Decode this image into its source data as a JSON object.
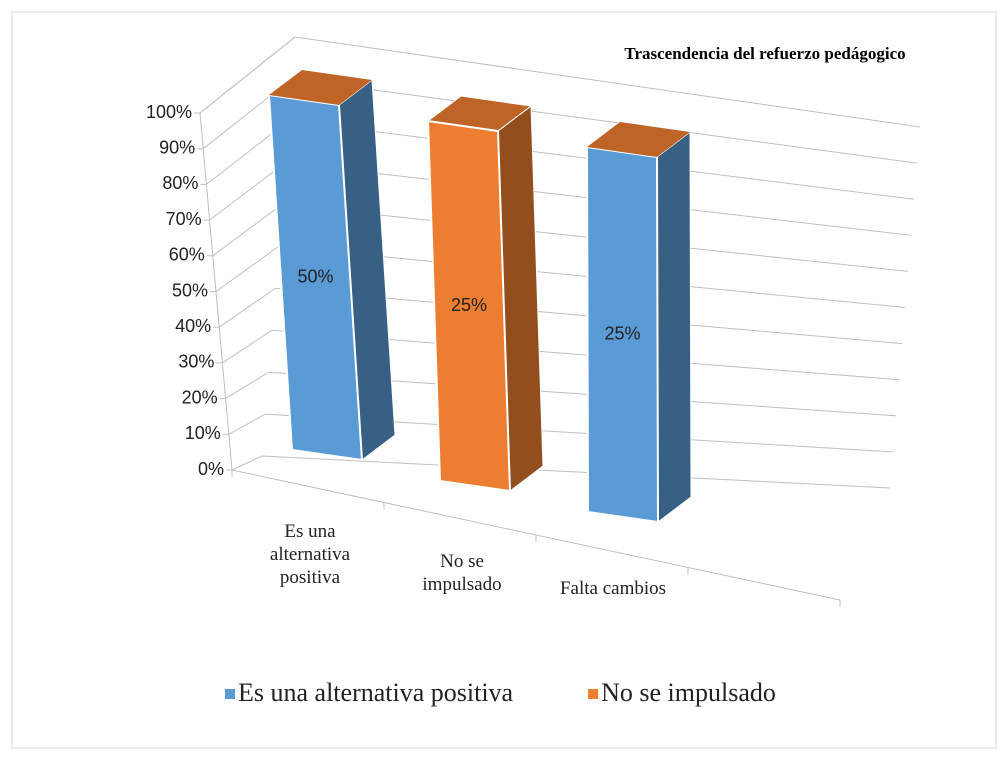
{
  "chart_data": {
    "type": "bar",
    "stacking": "percent",
    "title": "Trascendencia del refuerzo pedágogico",
    "categories": [
      "Es una alternativa positiva",
      "No se impulsado",
      "Falta cambios"
    ],
    "series": [
      {
        "name": "Es una alternativa positiva",
        "color": "#5b9bd5",
        "values": [
          50,
          0,
          25
        ],
        "value_labels": [
          "50%",
          null,
          "25%"
        ]
      },
      {
        "name": "No se impulsado",
        "color": "#ed7d31",
        "values": [
          0,
          25,
          0
        ],
        "value_labels": [
          null,
          "25%",
          null
        ]
      }
    ],
    "ylim": [
      0,
      100
    ],
    "yticks": [
      {
        "value": 0,
        "label": "0%"
      },
      {
        "value": 10,
        "label": "10%"
      },
      {
        "value": 20,
        "label": "20%"
      },
      {
        "value": 30,
        "label": "30%"
      },
      {
        "value": 40,
        "label": "40%"
      },
      {
        "value": 50,
        "label": "50%"
      },
      {
        "value": 60,
        "label": "60%"
      },
      {
        "value": 70,
        "label": "70%"
      },
      {
        "value": 80,
        "label": "80%"
      },
      {
        "value": 90,
        "label": "90%"
      },
      {
        "value": 100,
        "label": "100%"
      }
    ],
    "grid": true,
    "legend": "bottom"
  }
}
